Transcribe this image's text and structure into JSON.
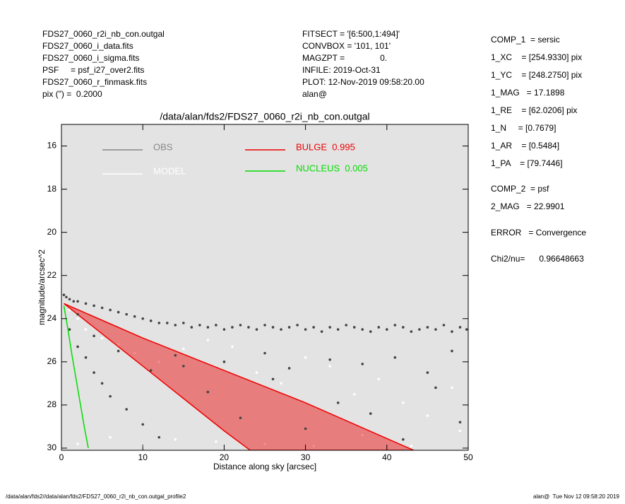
{
  "header": {
    "left": [
      "FDS27_0060_r2i_nb_con.outgal",
      "FDS27_0060_i_data.fits",
      "FDS27_0060_i_sigma.fits",
      "PSF     = psf_i27_over2.fits",
      "FDS27_0060_r_finmask.fits",
      "pix (\") =  0.2000"
    ],
    "middle": [
      "FITSECT = '[6:500,1:494]'",
      "CONVBOX = '101, 101'",
      "MAGZPT =               0.",
      "INFILE: 2019-Oct-31",
      "PLOT: 12-Nov-2019 09:58:20.00",
      "alan@"
    ],
    "right": [
      "COMP_1  = sersic",
      "1_XC    = [254.9330] pix",
      "1_YC    = [248.2750] pix",
      "1_MAG   = 17.1898",
      "1_RE    = [62.0206] pix",
      "1_N     = [0.7679]",
      "1_AR    = [0.5484]",
      "1_PA    = [79.7446]",
      "COMP_2  = psf",
      "2_MAG   = 22.9901",
      "ERROR   = Convergence",
      "Chi2/nu=      0.96648663"
    ]
  },
  "footer": {
    "left": "/data/alan/fds2//data/alan/fds2/FDS27_0060_r2i_nb_con.outgal_profile2",
    "right": "alan@  Tue Nov 12 09:58:20 2019"
  },
  "chart_data": {
    "type": "scatter",
    "title": "/data/alan/fds2/FDS27_0060_r2i_nb_con.outgal",
    "xlabel": "Distance along sky [arcsec]",
    "ylabel": "magnitude/arcsec^2",
    "xlim": [
      0,
      50
    ],
    "ylim": [
      15,
      30.1
    ],
    "y_inverted": true,
    "xticks": [
      0,
      10,
      20,
      30,
      40,
      50
    ],
    "yticks": [
      16,
      18,
      20,
      22,
      24,
      26,
      28,
      30
    ],
    "series": [
      {
        "name": "OBS",
        "color": "#444444",
        "legend_color": "#888888",
        "kind": "points",
        "x": [
          0.3,
          0.6,
          1,
          1.5,
          2,
          3,
          4,
          5,
          6,
          7,
          8,
          9,
          10,
          11,
          12,
          13,
          14,
          15,
          16,
          17,
          18,
          19,
          20,
          21,
          22,
          23,
          24,
          25,
          26,
          27,
          28,
          29,
          30,
          31,
          32,
          33,
          34,
          35,
          36,
          37,
          38,
          39,
          40,
          41,
          42,
          43,
          44,
          45,
          46,
          47,
          48,
          49,
          49.8,
          1,
          2,
          3,
          4,
          5,
          6,
          8,
          10,
          12,
          15,
          18,
          22,
          26,
          30,
          34,
          38,
          42,
          46,
          49,
          2,
          4,
          7,
          11,
          14,
          20,
          25,
          28,
          33,
          37,
          41,
          45,
          48
        ],
        "y": [
          22.9,
          23.0,
          23.1,
          23.2,
          23.2,
          23.3,
          23.4,
          23.5,
          23.6,
          23.7,
          23.8,
          23.9,
          24.0,
          24.1,
          24.2,
          24.2,
          24.3,
          24.2,
          24.4,
          24.3,
          24.4,
          24.3,
          24.5,
          24.4,
          24.3,
          24.4,
          24.5,
          24.3,
          24.4,
          24.5,
          24.4,
          24.3,
          24.5,
          24.4,
          24.6,
          24.4,
          24.5,
          24.3,
          24.4,
          24.5,
          24.6,
          24.4,
          24.5,
          24.3,
          24.4,
          24.6,
          24.5,
          24.4,
          24.5,
          24.3,
          24.6,
          24.4,
          24.5,
          24.5,
          25.3,
          25.8,
          26.5,
          27.0,
          27.6,
          28.2,
          28.9,
          29.5,
          26.2,
          27.4,
          28.6,
          26.8,
          29.1,
          27.9,
          28.4,
          29.6,
          27.2,
          28.8,
          23.8,
          24.8,
          25.5,
          26.4,
          25.7,
          26.0,
          25.6,
          26.3,
          25.9,
          26.1,
          25.8,
          26.5,
          25.5
        ]
      },
      {
        "name": "MODEL",
        "color": "#ffffff",
        "legend_color": "#ffffff",
        "kind": "points",
        "x": [
          1,
          2,
          3,
          5,
          7,
          9,
          12,
          15,
          18,
          21,
          24,
          27,
          30,
          33,
          36,
          39,
          42,
          45,
          48,
          2,
          6,
          10,
          14,
          19,
          25,
          31,
          37,
          43,
          49
        ],
        "y": [
          23.6,
          24.0,
          24.5,
          24.9,
          25.2,
          25.6,
          26.0,
          25.4,
          25.0,
          25.3,
          26.5,
          27.0,
          25.8,
          26.2,
          27.5,
          26.8,
          27.9,
          28.5,
          27.2,
          29.8,
          29.5,
          29.9,
          29.6,
          29.7,
          29.8,
          29.9,
          29.4,
          29.9,
          29.2
        ]
      },
      {
        "name": "BULGE  0.995",
        "color": "#ee0000",
        "legend_color": "#ee0000",
        "kind": "region",
        "x": [
          0.3,
          10,
          20,
          23.2,
          43.3,
          30,
          20,
          10,
          0.3
        ],
        "y": [
          23.3,
          26.2,
          29.2,
          30.1,
          30.1,
          27.9,
          26.4,
          24.9,
          23.3
        ]
      },
      {
        "name": "NUCLEUS  0.005",
        "color": "#00dd00",
        "legend_color": "#00dd00",
        "kind": "line",
        "x": [
          0.3,
          0.8,
          1.3,
          1.8,
          2.3,
          2.8,
          3.3
        ],
        "y": [
          23.4,
          24.5,
          25.7,
          26.8,
          27.9,
          29.0,
          30.0
        ]
      }
    ]
  }
}
